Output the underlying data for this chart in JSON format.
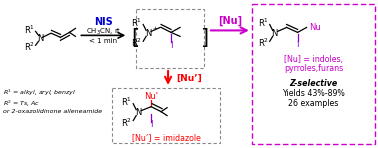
{
  "bg_color": "#ffffff",
  "nis_color": "#0000cc",
  "nu_color": "#cc00cc",
  "nu_prime_color": "#ff0000",
  "iodine_color": "#8800cc",
  "box_gray": "#888888",
  "right_box_color": "#cc00cc",
  "reagent_line1": "NIS",
  "reagent_line2": "CH$_3$CN, rt",
  "reagent_line3": "< 1 min",
  "nu_label": "[Nu]",
  "nu_prime_label": "[Nu’]",
  "r1_desc": "R$^1$ = alkyl, aryl, benzyl",
  "r2_desc": "R$^2$ = Ts, Ac",
  "r2_desc2": "or 2-oxazolidinone alleneamide",
  "nu_desc_line1": "[Nu] = indoles,",
  "nu_desc_line2": "pyrroles,furans",
  "selectivity": "Z-selective",
  "yield_text": "Yields 43%-89%",
  "examples": "26 examples",
  "nu_prime_desc": "[Nu’] = imidazole",
  "figsize": [
    3.78,
    1.48
  ],
  "dpi": 100
}
